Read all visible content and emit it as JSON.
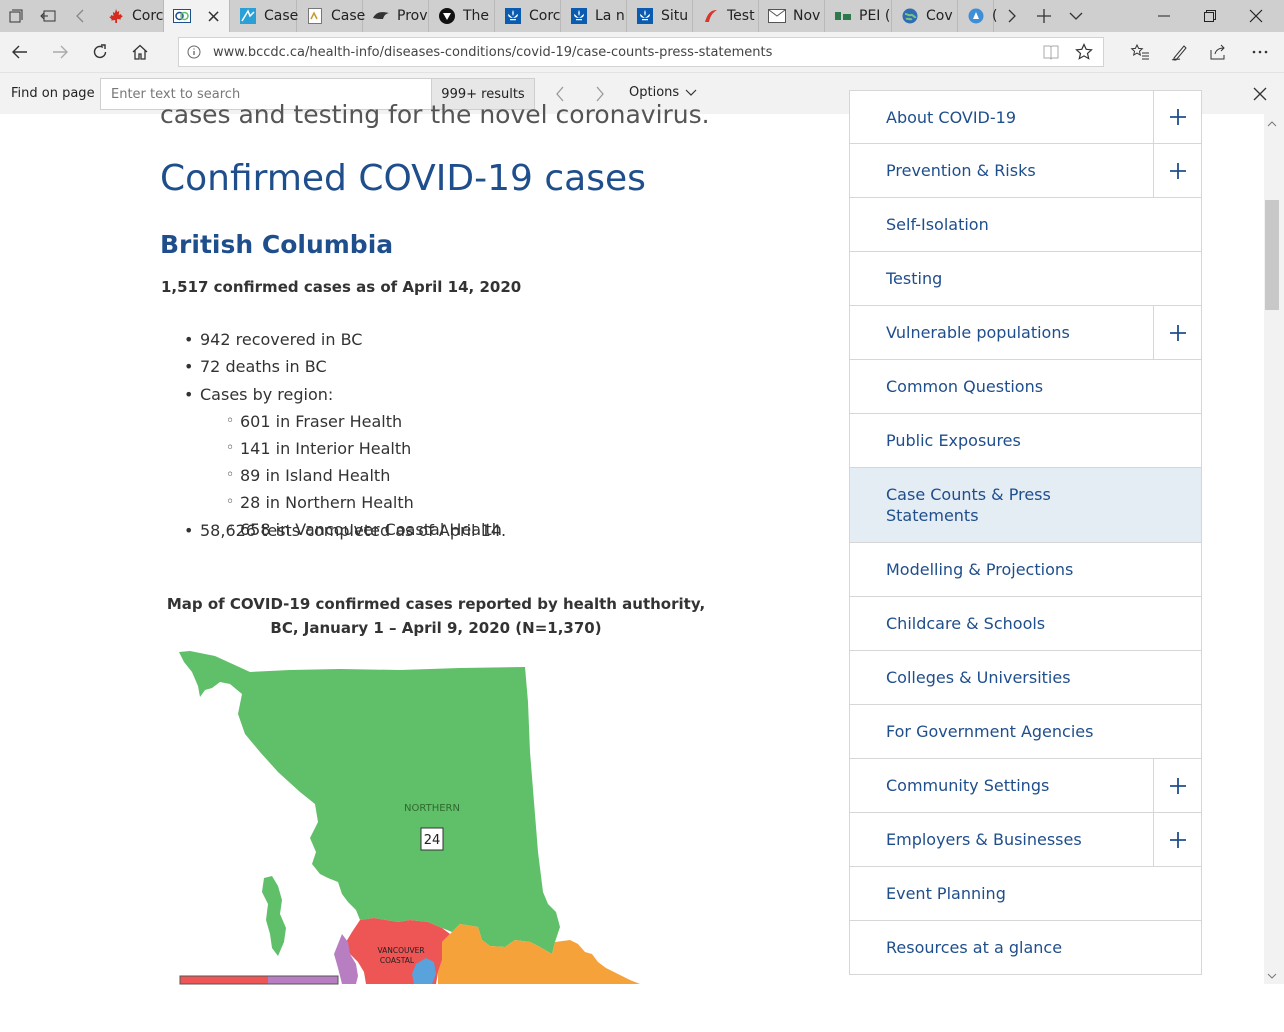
{
  "browser": {
    "tabs": [
      {
        "label": "Corc",
        "icon": "maple-leaf-icon",
        "active": false
      },
      {
        "label": "",
        "icon": "bccdc-logo-icon",
        "active": true,
        "close": "×"
      },
      {
        "label": "Case",
        "icon": "chart-icon",
        "active": false
      },
      {
        "label": "Case",
        "icon": "document-icon",
        "active": false
      },
      {
        "label": "Prov",
        "icon": "bird-icon",
        "active": false
      },
      {
        "label": "The",
        "icon": "circle-logo-icon",
        "active": false
      },
      {
        "label": "Corc",
        "icon": "fleur-de-lis-icon",
        "active": false
      },
      {
        "label": "La n",
        "icon": "fleur-de-lis-icon",
        "active": false
      },
      {
        "label": "Situ",
        "icon": "fleur-de-lis-icon",
        "active": false
      },
      {
        "label": "Test",
        "icon": "swoosh-icon",
        "active": false
      },
      {
        "label": "Nov",
        "icon": "envelope-icon",
        "active": false
      },
      {
        "label": "PEI (",
        "icon": "pei-logo-icon",
        "active": false
      },
      {
        "label": "Cov",
        "icon": "globe-icon",
        "active": false
      },
      {
        "label": "(",
        "icon": "shield-logo-icon",
        "active": false
      }
    ],
    "url": "www.bccdc.ca/health-info/diseases-conditions/covid-19/case-counts-press-statements",
    "find": {
      "label": "Find on page",
      "placeholder": "Enter text to search",
      "results": "999+ results",
      "options": "Options"
    }
  },
  "page": {
    "intro_tail": "cases and testing for the novel coronavirus.",
    "title": "Confirmed COVID-19 cases",
    "region_heading": "British Columbia",
    "summary": "1,517 confirmed cases as of April 14, 2020",
    "stats": {
      "recovered": "942 recovered in BC",
      "deaths": "72 deaths in BC",
      "regions_label": "Cases by region:",
      "regions": [
        "601 in Fraser Health",
        "141 in Interior Health",
        "89 in Island Health",
        "28 in Northern Health",
        "658 in Vancouver Coastal Health"
      ],
      "tests": "58,626 tests completed as of April 14."
    },
    "map": {
      "caption_line1": "Map of COVID-19 confirmed cases reported by health authority,",
      "caption_line2": "BC, January 1 – April 9, 2020 (N=1,370)",
      "northern_label": "NORTHERN",
      "northern_count": "24",
      "vancouver_label_1": "VANCOUVER",
      "vancouver_label_2": "COASTAL",
      "colors": {
        "northern": "#60bf69",
        "vancouver_coastal": "#ee5555",
        "interior": "#f6a23a",
        "fraser": "#5aa2dc",
        "island": "#b77fc2"
      }
    }
  },
  "sidebar": {
    "items": [
      {
        "label": "About COVID-19",
        "expandable": true
      },
      {
        "label": "Prevention & Risks",
        "expandable": true
      },
      {
        "label": "Self-Isolation",
        "expandable": false
      },
      {
        "label": "Testing",
        "expandable": false
      },
      {
        "label": "Vulnerable populations",
        "expandable": true
      },
      {
        "label": "Common Questions",
        "expandable": false
      },
      {
        "label": "Public Exposures",
        "expandable": false
      },
      {
        "label": "Case Counts & Press Statements",
        "expandable": false,
        "active": true
      },
      {
        "label": "Modelling & Projections",
        "expandable": false
      },
      {
        "label": "Childcare & Schools",
        "expandable": false
      },
      {
        "label": "Colleges & Universities",
        "expandable": false
      },
      {
        "label": "For Government Agencies",
        "expandable": false
      },
      {
        "label": "Community Settings",
        "expandable": true
      },
      {
        "label": "Employers & Businesses",
        "expandable": true
      },
      {
        "label": "Event Planning",
        "expandable": false
      },
      {
        "label": "Resources at a glance",
        "expandable": false
      }
    ]
  }
}
